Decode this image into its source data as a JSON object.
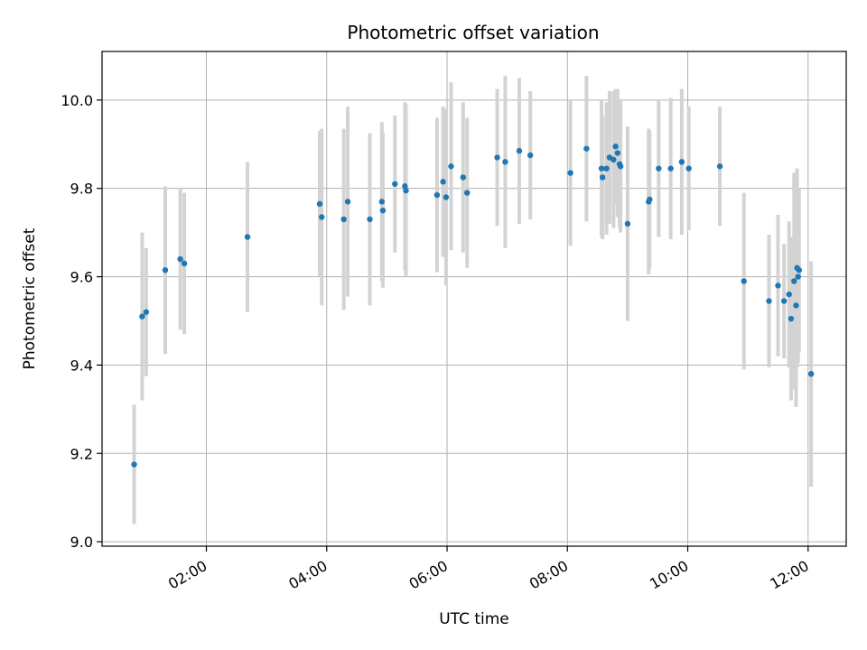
{
  "chart_data": {
    "type": "scatter",
    "title": "Photometric offset variation",
    "xlabel": "UTC time",
    "ylabel": "Photometric offset",
    "xlim": [
      "00:16",
      "12:38"
    ],
    "ylim": [
      8.99,
      10.11
    ],
    "xticks": [
      "02:00",
      "04:00",
      "06:00",
      "08:00",
      "10:00",
      "12:00"
    ],
    "yticks": [
      9.0,
      9.2,
      9.4,
      9.6,
      9.8,
      10.0
    ],
    "ytick_labels": [
      "9.0",
      "9.2",
      "9.4",
      "9.6",
      "9.8",
      "10.0"
    ],
    "grid": true,
    "colors": {
      "point": "#1f77b4",
      "errorbar": "#d3d3d3",
      "grid": "#b0b0b0"
    },
    "series": [
      {
        "points": [
          {
            "t": "00:48",
            "y": 9.175,
            "yerr_low": 0.135,
            "yerr_high": 0.135
          },
          {
            "t": "00:56",
            "y": 9.51,
            "yerr_low": 0.19,
            "yerr_high": 0.19
          },
          {
            "t": "01:00",
            "y": 9.52,
            "yerr_low": 0.145,
            "yerr_high": 0.145
          },
          {
            "t": "01:19",
            "y": 9.615,
            "yerr_low": 0.19,
            "yerr_high": 0.19
          },
          {
            "t": "01:34",
            "y": 9.64,
            "yerr_low": 0.16,
            "yerr_high": 0.16
          },
          {
            "t": "01:38",
            "y": 9.63,
            "yerr_low": 0.16,
            "yerr_high": 0.16
          },
          {
            "t": "02:41",
            "y": 9.69,
            "yerr_low": 0.17,
            "yerr_high": 0.17
          },
          {
            "t": "03:53",
            "y": 9.765,
            "yerr_low": 0.165,
            "yerr_high": 0.165
          },
          {
            "t": "03:55",
            "y": 9.735,
            "yerr_low": 0.2,
            "yerr_high": 0.2
          },
          {
            "t": "04:17",
            "y": 9.73,
            "yerr_low": 0.205,
            "yerr_high": 0.205
          },
          {
            "t": "04:21",
            "y": 9.77,
            "yerr_low": 0.215,
            "yerr_high": 0.215
          },
          {
            "t": "04:43",
            "y": 9.73,
            "yerr_low": 0.195,
            "yerr_high": 0.195
          },
          {
            "t": "04:55",
            "y": 9.77,
            "yerr_low": 0.18,
            "yerr_high": 0.18
          },
          {
            "t": "04:56",
            "y": 9.75,
            "yerr_low": 0.175,
            "yerr_high": 0.175
          },
          {
            "t": "05:08",
            "y": 9.81,
            "yerr_low": 0.155,
            "yerr_high": 0.155
          },
          {
            "t": "05:18",
            "y": 9.805,
            "yerr_low": 0.19,
            "yerr_high": 0.19
          },
          {
            "t": "05:19",
            "y": 9.795,
            "yerr_low": 0.195,
            "yerr_high": 0.195
          },
          {
            "t": "05:50",
            "y": 9.785,
            "yerr_low": 0.175,
            "yerr_high": 0.175
          },
          {
            "t": "05:56",
            "y": 9.815,
            "yerr_low": 0.17,
            "yerr_high": 0.17
          },
          {
            "t": "05:59",
            "y": 9.78,
            "yerr_low": 0.2,
            "yerr_high": 0.2
          },
          {
            "t": "06:04",
            "y": 9.85,
            "yerr_low": 0.19,
            "yerr_high": 0.19
          },
          {
            "t": "06:16",
            "y": 9.825,
            "yerr_low": 0.17,
            "yerr_high": 0.17
          },
          {
            "t": "06:20",
            "y": 9.79,
            "yerr_low": 0.17,
            "yerr_high": 0.17
          },
          {
            "t": "06:50",
            "y": 9.87,
            "yerr_low": 0.155,
            "yerr_high": 0.155
          },
          {
            "t": "06:58",
            "y": 9.86,
            "yerr_low": 0.195,
            "yerr_high": 0.195
          },
          {
            "t": "07:12",
            "y": 9.885,
            "yerr_low": 0.165,
            "yerr_high": 0.165
          },
          {
            "t": "07:23",
            "y": 9.875,
            "yerr_low": 0.145,
            "yerr_high": 0.145
          },
          {
            "t": "08:03",
            "y": 9.835,
            "yerr_low": 0.165,
            "yerr_high": 0.165
          },
          {
            "t": "08:19",
            "y": 9.89,
            "yerr_low": 0.165,
            "yerr_high": 0.165
          },
          {
            "t": "08:34",
            "y": 9.845,
            "yerr_low": 0.155,
            "yerr_high": 0.155
          },
          {
            "t": "08:35",
            "y": 9.825,
            "yerr_low": 0.14,
            "yerr_high": 0.14
          },
          {
            "t": "08:39",
            "y": 9.845,
            "yerr_low": 0.15,
            "yerr_high": 0.15
          },
          {
            "t": "08:42",
            "y": 9.87,
            "yerr_low": 0.15,
            "yerr_high": 0.15
          },
          {
            "t": "08:46",
            "y": 9.865,
            "yerr_low": 0.155,
            "yerr_high": 0.155
          },
          {
            "t": "08:48",
            "y": 9.895,
            "yerr_low": 0.13,
            "yerr_high": 0.13
          },
          {
            "t": "08:50",
            "y": 9.88,
            "yerr_low": 0.145,
            "yerr_high": 0.145
          },
          {
            "t": "08:52",
            "y": 9.855,
            "yerr_low": 0.145,
            "yerr_high": 0.145
          },
          {
            "t": "08:53",
            "y": 9.85,
            "yerr_low": 0.15,
            "yerr_high": 0.15
          },
          {
            "t": "09:00",
            "y": 9.72,
            "yerr_low": 0.22,
            "yerr_high": 0.22
          },
          {
            "t": "09:21",
            "y": 9.77,
            "yerr_low": 0.165,
            "yerr_high": 0.165
          },
          {
            "t": "09:22",
            "y": 9.775,
            "yerr_low": 0.155,
            "yerr_high": 0.155
          },
          {
            "t": "09:31",
            "y": 9.845,
            "yerr_low": 0.155,
            "yerr_high": 0.155
          },
          {
            "t": "09:43",
            "y": 9.845,
            "yerr_low": 0.16,
            "yerr_high": 0.16
          },
          {
            "t": "09:54",
            "y": 9.86,
            "yerr_low": 0.165,
            "yerr_high": 0.165
          },
          {
            "t": "10:01",
            "y": 9.845,
            "yerr_low": 0.14,
            "yerr_high": 0.14
          },
          {
            "t": "10:32",
            "y": 9.85,
            "yerr_low": 0.135,
            "yerr_high": 0.135
          },
          {
            "t": "10:56",
            "y": 9.59,
            "yerr_low": 0.2,
            "yerr_high": 0.2
          },
          {
            "t": "11:21",
            "y": 9.545,
            "yerr_low": 0.15,
            "yerr_high": 0.15
          },
          {
            "t": "11:30",
            "y": 9.58,
            "yerr_low": 0.16,
            "yerr_high": 0.16
          },
          {
            "t": "11:36",
            "y": 9.545,
            "yerr_low": 0.13,
            "yerr_high": 0.13
          },
          {
            "t": "11:41",
            "y": 9.56,
            "yerr_low": 0.165,
            "yerr_high": 0.165
          },
          {
            "t": "11:43",
            "y": 9.505,
            "yerr_low": 0.185,
            "yerr_high": 0.185
          },
          {
            "t": "11:46",
            "y": 9.59,
            "yerr_low": 0.245,
            "yerr_high": 0.245
          },
          {
            "t": "11:48",
            "y": 9.535,
            "yerr_low": 0.23,
            "yerr_high": 0.23
          },
          {
            "t": "11:49",
            "y": 9.62,
            "yerr_low": 0.225,
            "yerr_high": 0.225
          },
          {
            "t": "11:50",
            "y": 9.6,
            "yerr_low": 0.195,
            "yerr_high": 0.195
          },
          {
            "t": "11:51",
            "y": 9.615,
            "yerr_low": 0.185,
            "yerr_high": 0.185
          },
          {
            "t": "12:03",
            "y": 9.38,
            "yerr_low": 0.255,
            "yerr_high": 0.255
          }
        ]
      }
    ]
  }
}
